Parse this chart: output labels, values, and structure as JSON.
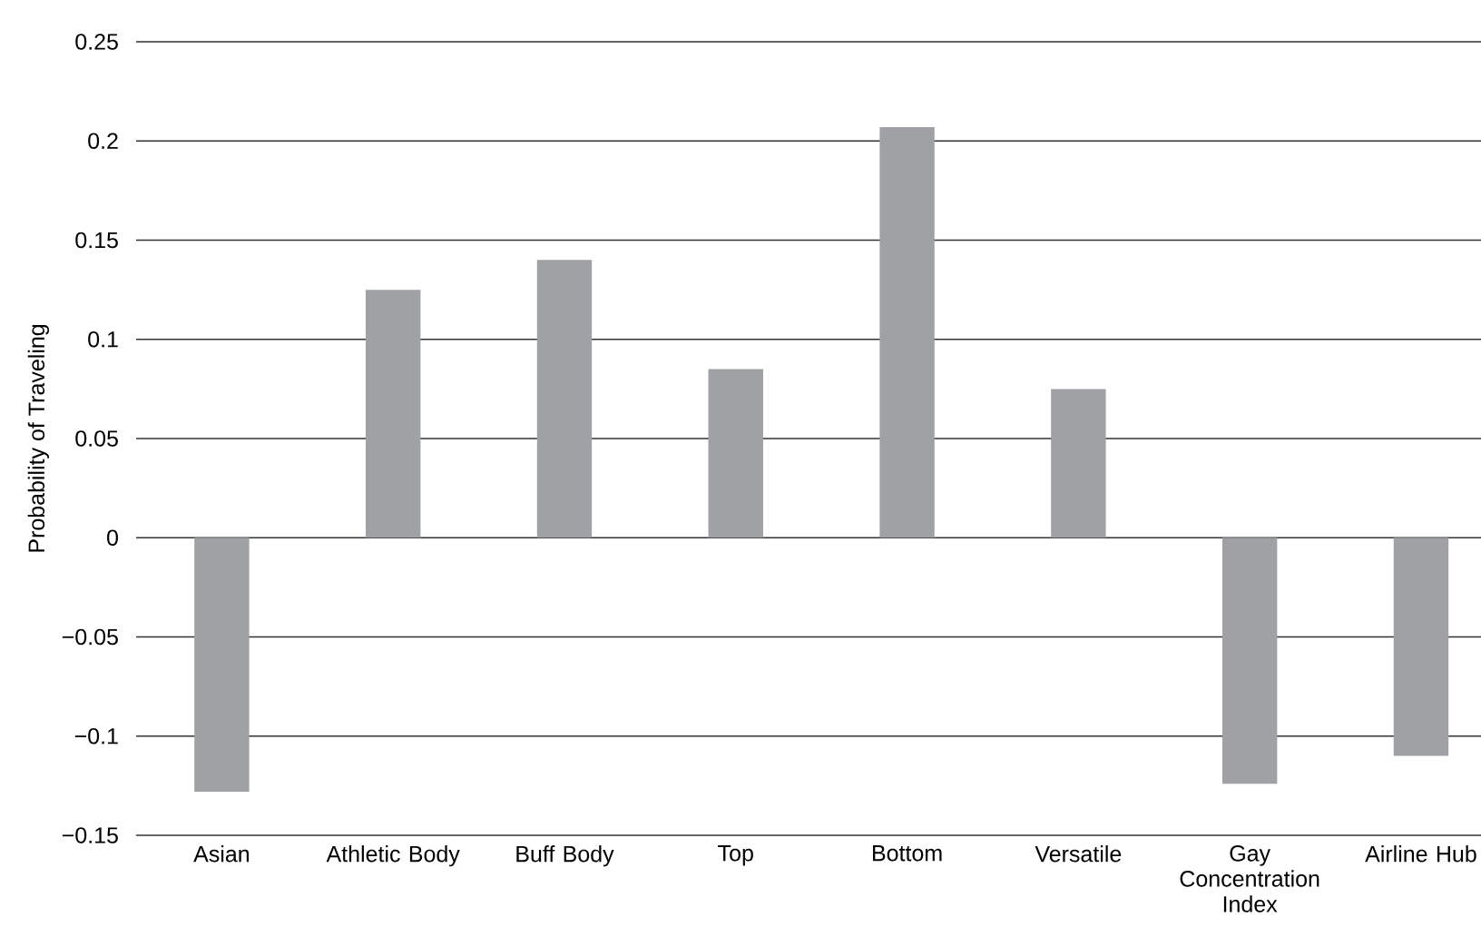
{
  "chart_data": {
    "type": "bar",
    "ylabel": "Probability of Traveling",
    "categories": [
      "Asian",
      "Athletic Body",
      "Buff Body",
      "Top",
      "Bottom",
      "Versatile",
      "Gay Concentration Index",
      "Airline Hub"
    ],
    "values": [
      -0.128,
      0.125,
      0.14,
      0.085,
      0.207,
      0.075,
      -0.124,
      -0.11
    ],
    "color": "#a0a1a5",
    "ylim": [
      -0.15,
      0.25
    ],
    "yticks": [
      {
        "value": -0.15,
        "label": "−0.15"
      },
      {
        "value": -0.1,
        "label": "−0.1"
      },
      {
        "value": -0.05,
        "label": "−0.05"
      },
      0,
      0.05,
      0.1,
      0.15,
      0.2,
      0.25
    ],
    "grid": "y"
  }
}
